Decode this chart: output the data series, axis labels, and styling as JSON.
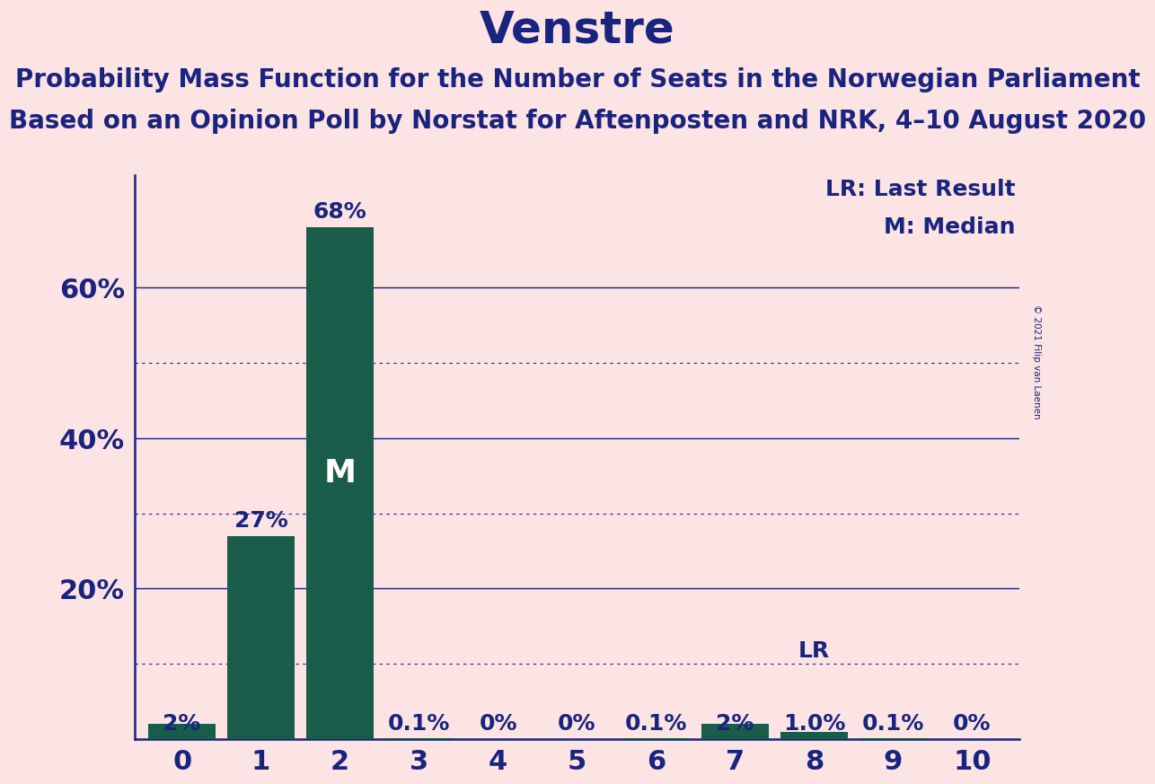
{
  "title": "Venstre",
  "subtitle1": "Probability Mass Function for the Number of Seats in the Norwegian Parliament",
  "subtitle2": "Based on an Opinion Poll by Norstat for Aftenposten and NRK, 4–10 August 2020",
  "copyright": "© 2021 Filip van Laenen",
  "categories": [
    0,
    1,
    2,
    3,
    4,
    5,
    6,
    7,
    8,
    9,
    10
  ],
  "values": [
    0.02,
    0.27,
    0.68,
    0.001,
    0.0,
    0.0,
    0.001,
    0.02,
    0.01,
    0.001,
    0.0
  ],
  "labels": [
    "2%",
    "27%",
    "68%",
    "0.1%",
    "0%",
    "0%",
    "0.1%",
    "2%",
    "1.0%",
    "0.1%",
    "0%"
  ],
  "bar_color": "#1a5c4a",
  "background_color": "#fce4e4",
  "text_color": "#1a237e",
  "median_bar": 2,
  "lr_bar": 8,
  "median_label": "M",
  "lr_label": "LR",
  "legend_lr": "LR: Last Result",
  "legend_m": "M: Median",
  "ylim": [
    0,
    0.75
  ],
  "yticks": [
    0.2,
    0.4,
    0.6
  ],
  "ytick_labels": [
    "20%",
    "40%",
    "60%"
  ],
  "dotted_grid_values": [
    0.1,
    0.3,
    0.5
  ],
  "solid_grid_values": [
    0.2,
    0.4,
    0.6
  ],
  "title_fontsize": 36,
  "subtitle_fontsize": 20,
  "tick_fontsize": 22,
  "legend_fontsize": 18,
  "bar_label_fontsize": 18,
  "median_fontsize": 26
}
